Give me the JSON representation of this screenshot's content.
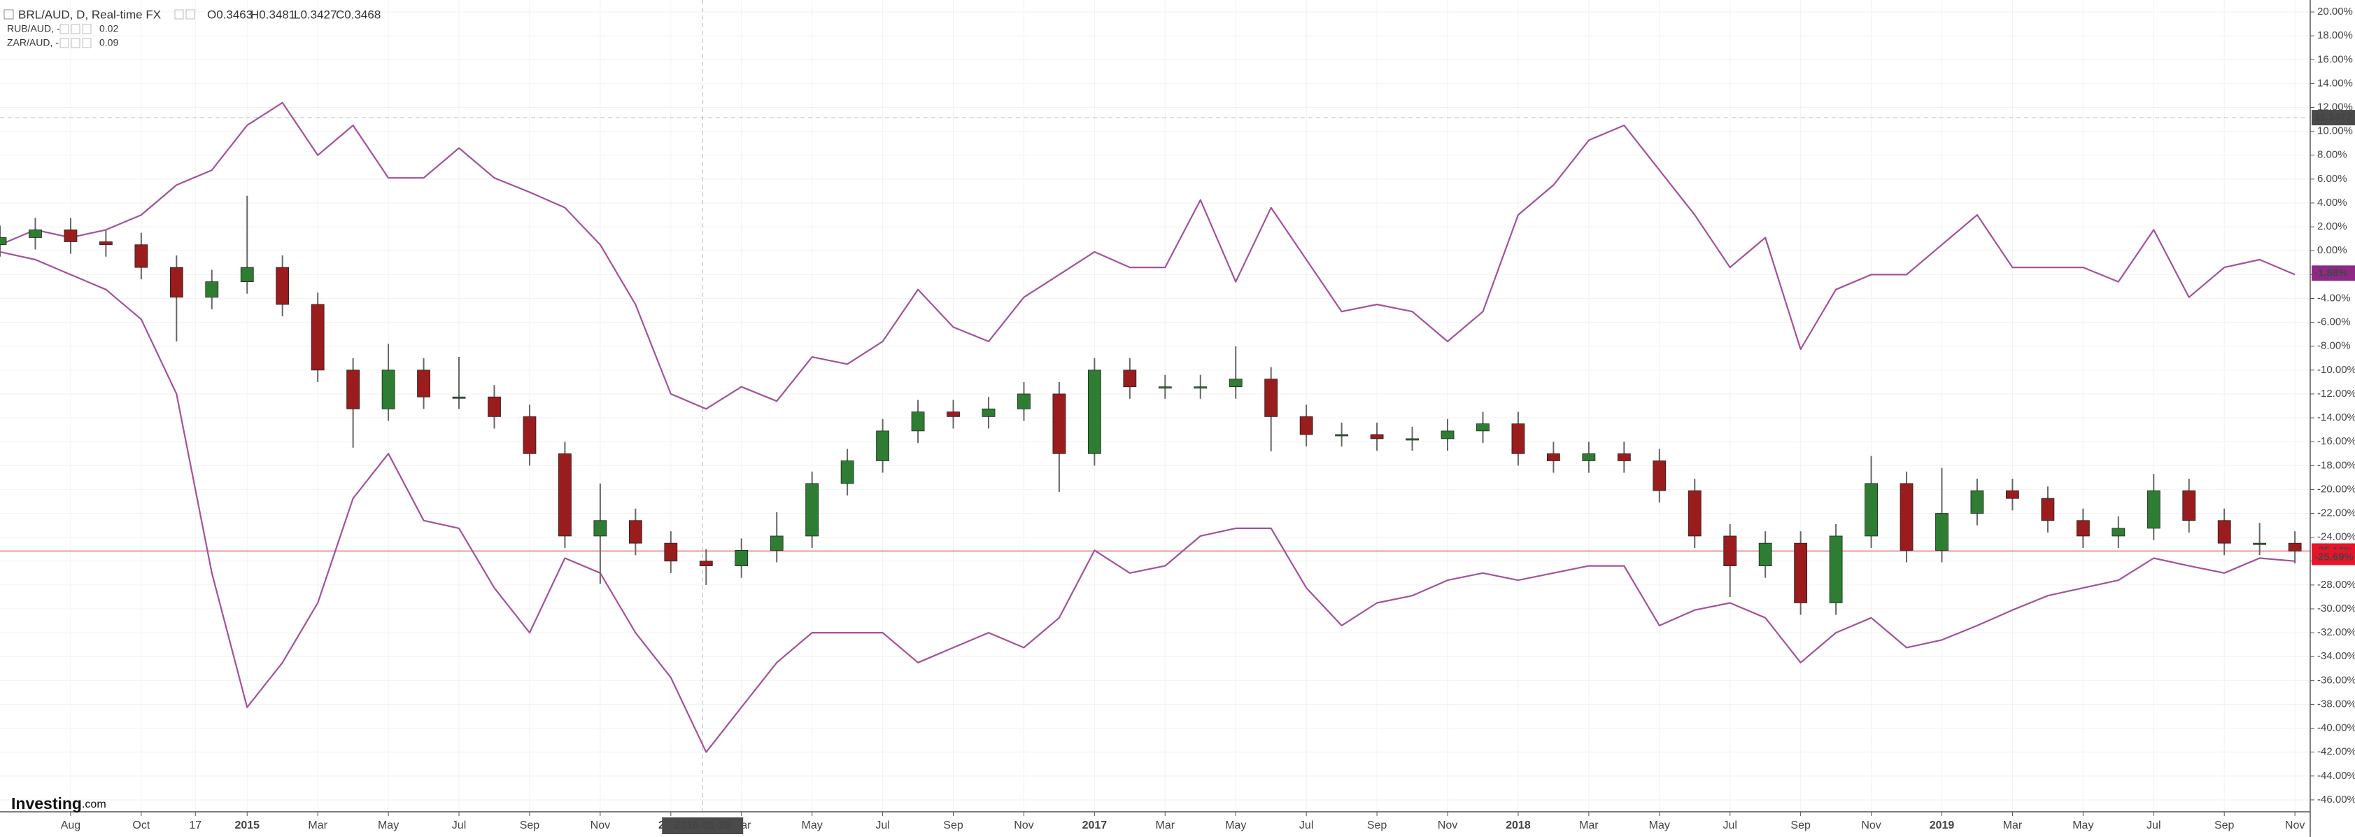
{
  "chart_data": {
    "type": "candlestick",
    "grid": true,
    "x": [
      "2014-06",
      "2014-07",
      "2014-08",
      "2014-09",
      "2014-10",
      "2014-11",
      "2014-12",
      "2015-01",
      "2015-02",
      "2015-03",
      "2015-04",
      "2015-05",
      "2015-06",
      "2015-07",
      "2015-08",
      "2015-09",
      "2015-10",
      "2015-11",
      "2015-12",
      "2016-01",
      "2016-02",
      "2016-03",
      "2016-04",
      "2016-05",
      "2016-06",
      "2016-07",
      "2016-08",
      "2016-09",
      "2016-10",
      "2016-11",
      "2016-12",
      "2017-01",
      "2017-02",
      "2017-03",
      "2017-04",
      "2017-05",
      "2017-06",
      "2017-07",
      "2017-08",
      "2017-09",
      "2017-10",
      "2017-11",
      "2017-12",
      "2018-01",
      "2018-02",
      "2018-03",
      "2018-04",
      "2018-05",
      "2018-06",
      "2018-07",
      "2018-08",
      "2018-09",
      "2018-10",
      "2018-11",
      "2018-12",
      "2019-01",
      "2019-02",
      "2019-03",
      "2019-04",
      "2019-05",
      "2019-06",
      "2019-07",
      "2019-08",
      "2019-09",
      "2019-10",
      "2019-11"
    ],
    "xlim": [
      "2014-06",
      "2019-11-14"
    ],
    "xticks": [
      {
        "value": "2014-08",
        "label": "Aug"
      },
      {
        "value": "2014-10",
        "label": "Oct"
      },
      {
        "value": "2014-11-17",
        "label": "17"
      },
      {
        "value": "2015-01",
        "label": "2015"
      },
      {
        "value": "2015-03",
        "label": "Mar"
      },
      {
        "value": "2015-05",
        "label": "May"
      },
      {
        "value": "2015-07",
        "label": "Jul"
      },
      {
        "value": "2015-09",
        "label": "Sep"
      },
      {
        "value": "2015-11",
        "label": "Nov"
      },
      {
        "value": "2016-01",
        "label": "2016"
      },
      {
        "value": "2016-03",
        "label": "Mar"
      },
      {
        "value": "2016-05",
        "label": "May"
      },
      {
        "value": "2016-07",
        "label": "Jul"
      },
      {
        "value": "2016-09",
        "label": "Sep"
      },
      {
        "value": "2016-11",
        "label": "Nov"
      },
      {
        "value": "2017-01",
        "label": "2017"
      },
      {
        "value": "2017-03",
        "label": "Mar"
      },
      {
        "value": "2017-05",
        "label": "May"
      },
      {
        "value": "2017-07",
        "label": "Jul"
      },
      {
        "value": "2017-09",
        "label": "Sep"
      },
      {
        "value": "2017-11",
        "label": "Nov"
      },
      {
        "value": "2018-01",
        "label": "2018"
      },
      {
        "value": "2018-03",
        "label": "Mar"
      },
      {
        "value": "2018-05",
        "label": "May"
      },
      {
        "value": "2018-07",
        "label": "Jul"
      },
      {
        "value": "2018-09",
        "label": "Sep"
      },
      {
        "value": "2018-11",
        "label": "Nov"
      },
      {
        "value": "2019-01",
        "label": "2019"
      },
      {
        "value": "2019-03",
        "label": "Mar"
      },
      {
        "value": "2019-05",
        "label": "May"
      },
      {
        "value": "2019-07",
        "label": "Jul"
      },
      {
        "value": "2019-09",
        "label": "Sep"
      },
      {
        "value": "2019-11",
        "label": "Nov"
      }
    ],
    "ylim": [
      -47,
      21
    ],
    "yticks": [
      {
        "value": 20,
        "label": "20.00%"
      },
      {
        "value": 18,
        "label": "18.00%"
      },
      {
        "value": 16,
        "label": "16.00%"
      },
      {
        "value": 14,
        "label": "14.00%"
      },
      {
        "value": 12,
        "label": "12.00%"
      },
      {
        "value": 10,
        "label": "10.00%"
      },
      {
        "value": 8,
        "label": "8.00%"
      },
      {
        "value": 6,
        "label": "6.00%"
      },
      {
        "value": 4,
        "label": "4.00%"
      },
      {
        "value": 2,
        "label": "2.00%"
      },
      {
        "value": 0,
        "label": "0.00%"
      },
      {
        "value": -2,
        "label": "-2.00%"
      },
      {
        "value": -4,
        "label": "-4.00%"
      },
      {
        "value": -6,
        "label": "-6.00%"
      },
      {
        "value": -8,
        "label": "-8.00%"
      },
      {
        "value": -10,
        "label": "-10.00%"
      },
      {
        "value": -12,
        "label": "-12.00%"
      },
      {
        "value": -14,
        "label": "-14.00%"
      },
      {
        "value": -16,
        "label": "-16.00%"
      },
      {
        "value": -18,
        "label": "-18.00%"
      },
      {
        "value": -20,
        "label": "-20.00%"
      },
      {
        "value": -22,
        "label": "-22.00%"
      },
      {
        "value": -24,
        "label": "-24.00%"
      },
      {
        "value": -26,
        "label": "-26.00%"
      },
      {
        "value": -28,
        "label": "-28.00%"
      },
      {
        "value": -30,
        "label": "-30.00%"
      },
      {
        "value": -32,
        "label": "-32.00%"
      },
      {
        "value": -34,
        "label": "-34.00%"
      },
      {
        "value": -36,
        "label": "-36.00%"
      },
      {
        "value": -38,
        "label": "-38.00%"
      },
      {
        "value": -40,
        "label": "-40.00%"
      },
      {
        "value": -42,
        "label": "-42.00%"
      },
      {
        "value": -44,
        "label": "-44.00%"
      },
      {
        "value": -46,
        "label": "-46.00%"
      }
    ],
    "crosshair": {
      "date": "2016-01-28",
      "price": 11.1472
    },
    "logo": [
      "Investing",
      ".com"
    ],
    "series": [
      {
        "name": "BRL/AUD, D, Real-time FX",
        "up_color": "#2e7d32",
        "down_color": "#9b1c1c",
        "wick_color": "#666666",
        "ohlc_labels": [
          "O0.3463",
          "H0.3481",
          "L0.3427",
          "C0.3468"
        ],
        "open": [
          0.5,
          1.1,
          1.75,
          0.75,
          0.5,
          -1.4,
          -3.9,
          -2.6,
          -1.4,
          -4.5,
          -10,
          -13.25,
          -10,
          -12.25,
          -12.25,
          -13.9,
          -17,
          -23.9,
          -22.6,
          -24.5,
          -26,
          -26.4,
          -25.1,
          -23.9,
          -19.5,
          -17.6,
          -15.1,
          -13.5,
          -13.9,
          -13.25,
          -12,
          -17,
          -10,
          -11.4,
          -11.4,
          -11.4,
          -10.75,
          -13.9,
          -15.4,
          -15.4,
          -15.75,
          -15.75,
          -15.1,
          -14.5,
          -17,
          -17.6,
          -17,
          -17.6,
          -20.1,
          -23.9,
          -26.4,
          -24.5,
          -29.5,
          -23.9,
          -19.5,
          -25.1,
          -22,
          -20.1,
          -20.75,
          -22.6,
          -23.9,
          -23.25,
          -20.1,
          -22.6,
          -24.5,
          -24.5
        ],
        "high": [
          2.1,
          2.75,
          2.75,
          1.75,
          1.5,
          -0.4,
          -1.6,
          4.6,
          -0.4,
          -3.5,
          -9,
          -7.8,
          -9,
          -8.9,
          -11.25,
          -12.9,
          -16,
          -19.5,
          -21.6,
          -23.5,
          -25,
          -24.1,
          -21.9,
          -18.5,
          -16.6,
          -14.1,
          -12.5,
          -12.5,
          -12.25,
          -11,
          -11,
          -9,
          -9,
          -10.4,
          -10.4,
          -8,
          -9.75,
          -12.9,
          -14.4,
          -14.4,
          -14.75,
          -14.1,
          -13.5,
          -13.5,
          -16,
          -16,
          -16,
          -16.6,
          -19.1,
          -22.9,
          -23.5,
          -23.5,
          -22.9,
          -17.2,
          -18.5,
          -18.2,
          -19.1,
          -19.1,
          -19.75,
          -21.6,
          -22.25,
          -18.7,
          -19.1,
          -21.6,
          -22.8,
          -23.5
        ],
        "low": [
          -0.5,
          0.1,
          -0.25,
          -0.5,
          -2.4,
          -7.6,
          -4.9,
          -3.6,
          -5.5,
          -11,
          -16.5,
          -14.25,
          -13.25,
          -13.25,
          -14.9,
          -18,
          -24.9,
          -27.9,
          -25.5,
          -27,
          -28,
          -27.4,
          -26.1,
          -24.9,
          -20.5,
          -18.6,
          -16.1,
          -14.9,
          -14.9,
          -14.25,
          -20.2,
          -18,
          -12.4,
          -12.4,
          -12.4,
          -12.4,
          -16.8,
          -16.4,
          -16.4,
          -16.75,
          -16.75,
          -16.75,
          -16.1,
          -18,
          -18.6,
          -18.6,
          -18.6,
          -21.1,
          -24.9,
          -29,
          -27.4,
          -30.5,
          -30.5,
          -24.9,
          -26.1,
          -26.1,
          -23,
          -21.75,
          -23.6,
          -24.9,
          -24.9,
          -24.25,
          -23.6,
          -25.5,
          -25.5,
          -26.2
        ],
        "close": [
          1.1,
          1.75,
          0.75,
          0.5,
          -1.4,
          -3.9,
          -2.6,
          -1.4,
          -4.5,
          -10,
          -13.25,
          -10,
          -12.25,
          -12.25,
          -13.9,
          -17,
          -23.9,
          -22.6,
          -24.5,
          -26,
          -26.4,
          -25.1,
          -23.9,
          -19.5,
          -17.6,
          -15.1,
          -13.5,
          -13.9,
          -13.25,
          -12,
          -17,
          -10,
          -11.4,
          -11.4,
          -11.4,
          -10.75,
          -13.9,
          -15.4,
          -15.4,
          -15.75,
          -15.75,
          -15.1,
          -14.5,
          -17,
          -17.6,
          -17,
          -17.6,
          -20.1,
          -23.9,
          -26.4,
          -24.5,
          -29.5,
          -23.9,
          -19.5,
          -25.1,
          -22,
          -20.1,
          -20.75,
          -22.6,
          -23.9,
          -23.25,
          -20.1,
          -22.6,
          -24.5,
          -24.5,
          -25.16
        ],
        "last": {
          "value": -25.16,
          "label": "-25.16%",
          "color": "#e8142b"
        }
      },
      {
        "name": "RUB/AUD, -",
        "color": "#a3529a",
        "header_value": 0.02,
        "values": [
          -0.1,
          -0.75,
          -2,
          -3.25,
          -5.75,
          -12,
          -27,
          -38.25,
          -34.5,
          -29.5,
          -20.75,
          -17,
          -22.6,
          -23.25,
          -28.25,
          -32,
          -25.75,
          -27,
          -32,
          -35.75,
          -42,
          -38.25,
          -34.5,
          -32,
          -32,
          -32,
          -34.5,
          -33.25,
          -32,
          -33.25,
          -30.75,
          -25.1,
          -27,
          -26.4,
          -23.9,
          -23.25,
          -23.25,
          -28.25,
          -31.4,
          -29.5,
          -28.9,
          -27.6,
          -27,
          -27.6,
          -27,
          -26.4,
          -26.4,
          -31.4,
          -30.1,
          -29.5,
          -30.75,
          -34.5,
          -32,
          -30.75,
          -33.25,
          -32.6,
          -31.4,
          -30.1,
          -28.9,
          -28.25,
          -27.6,
          -25.75,
          -26.4,
          -27,
          -25.75,
          -26
        ],
        "last": {
          "value": -25.69,
          "label": "-25.69%",
          "color": "#e8142b"
        }
      },
      {
        "name": "ZAR/AUD, -",
        "color": "#a3529a",
        "header_value": 0.09,
        "values": [
          0.5,
          1.75,
          1.1,
          1.75,
          3,
          5.5,
          6.75,
          10.5,
          12.4,
          8,
          10.5,
          6.1,
          6.1,
          8.6,
          6.1,
          4.9,
          3.6,
          0.5,
          -4.5,
          -12,
          -13.25,
          -11.4,
          -12.6,
          -8.9,
          -9.5,
          -7.6,
          -3.25,
          -6.4,
          -7.6,
          -3.9,
          -2,
          -0.1,
          -1.4,
          -1.4,
          4.25,
          -2.6,
          3.6,
          -0.75,
          -5.1,
          -4.5,
          -5.1,
          -7.6,
          -5.1,
          3,
          5.5,
          9.25,
          10.5,
          6.75,
          3,
          -1.4,
          1.1,
          -8.25,
          -3.25,
          -2,
          -2,
          0.5,
          3,
          -1.4,
          -1.4,
          -1.4,
          -2.6,
          1.75,
          -3.9,
          -1.4,
          -0.75,
          -2
        ],
        "last": {
          "value": -1.88,
          "label": "-1.88%",
          "color": "#8e2a86"
        }
      }
    ]
  }
}
